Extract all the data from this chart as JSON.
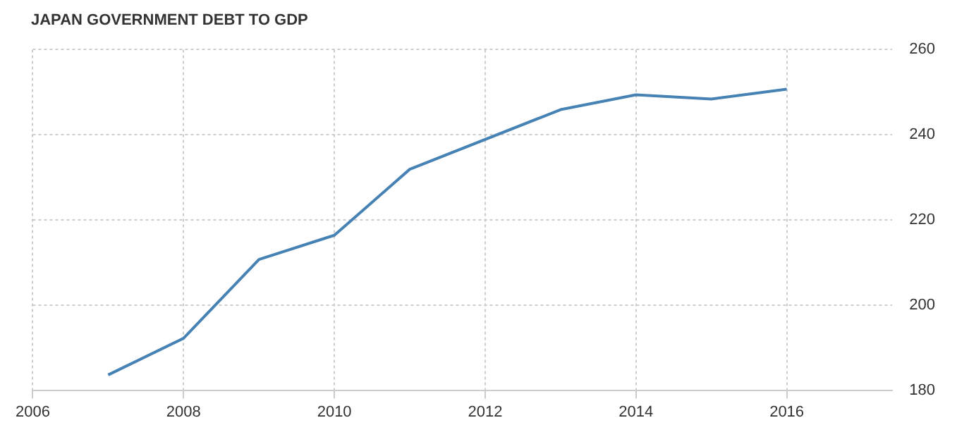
{
  "chart_data": {
    "type": "line",
    "title": "JAPAN GOVERNMENT DEBT TO GDP",
    "x": [
      2007,
      2008,
      2009,
      2010,
      2011,
      2013,
      2014,
      2015,
      2016
    ],
    "series": [
      {
        "color": "#4682b4",
        "values": [
          183.6,
          192.2,
          210.7,
          216.4,
          231.9,
          245.9,
          249.4,
          248.4,
          250.7
        ]
      }
    ],
    "xlim": [
      2006,
      2017.4
    ],
    "xticks": [
      2006,
      2008,
      2010,
      2012,
      2014,
      2016
    ],
    "ylim": [
      180,
      260
    ],
    "yticks": [
      180,
      200,
      220,
      240,
      260
    ],
    "grid": true,
    "legend": false,
    "marker": "none",
    "line_style": "solid"
  }
}
